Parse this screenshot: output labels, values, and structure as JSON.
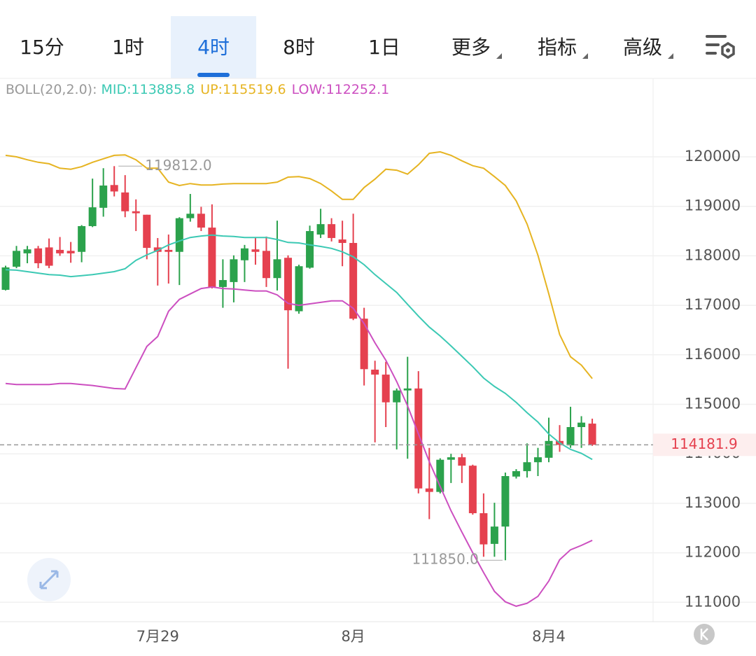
{
  "tabs": [
    {
      "label": "15分"
    },
    {
      "label": "1时"
    },
    {
      "label": "4时",
      "active": true
    },
    {
      "label": "8时"
    },
    {
      "label": "1日"
    },
    {
      "label": "更多",
      "dropdown": true
    },
    {
      "label": "指标",
      "dropdown": true
    },
    {
      "label": "高级",
      "dropdown": true
    }
  ],
  "chart_data": {
    "type": "candlestick",
    "indicator_label": "BOLL(20,2.0):",
    "categories": [
      null,
      null,
      null,
      null,
      null,
      null,
      null,
      null,
      null,
      null,
      null,
      null,
      null,
      null,
      "7月29",
      null,
      null,
      null,
      null,
      null,
      null,
      null,
      null,
      null,
      null,
      null,
      null,
      null,
      null,
      null,
      null,
      null,
      "8月",
      null,
      null,
      null,
      null,
      null,
      null,
      null,
      null,
      null,
      null,
      null,
      null,
      null,
      null,
      null,
      null,
      null,
      "8月4",
      null,
      null,
      null,
      null
    ],
    "open": [
      117313,
      117780,
      118050,
      118150,
      118170,
      118120,
      118100,
      118080,
      118600,
      118970,
      119430,
      119280,
      118900,
      118830,
      118170,
      118120,
      118080,
      118760,
      118850,
      118570,
      117370,
      117470,
      117910,
      118130,
      118100,
      117550,
      117960,
      116880,
      117760,
      118430,
      118640,
      118330,
      118260,
      116730,
      115700,
      115600,
      115040,
      115280,
      115320,
      113300,
      113230,
      113880,
      113930,
      113760,
      112800,
      112180,
      112530,
      113540,
      113650,
      113830,
      113920,
      114260,
      114170,
      114540,
      114610
    ],
    "high": [
      117800,
      118200,
      118200,
      118200,
      118350,
      118380,
      118280,
      118620,
      119560,
      119770,
      119812,
      119630,
      119140,
      118830,
      118360,
      118430,
      118780,
      119250,
      118990,
      119040,
      117930,
      118010,
      118220,
      118360,
      118390,
      118710,
      118010,
      117820,
      118610,
      118950,
      118760,
      118710,
      118850,
      116950,
      115880,
      115860,
      115320,
      115960,
      115670,
      114120,
      113910,
      114000,
      114000,
      113780,
      113200,
      113010,
      113620,
      113690,
      114210,
      114120,
      114730,
      114580,
      114950,
      114760,
      114710
    ],
    "low": [
      117300,
      117750,
      117850,
      117750,
      117750,
      118000,
      117860,
      117870,
      118580,
      118790,
      119200,
      118780,
      118500,
      117930,
      117400,
      117440,
      117410,
      118690,
      118500,
      117340,
      116950,
      117060,
      117470,
      117820,
      117370,
      117300,
      115720,
      116830,
      117740,
      118360,
      118290,
      117790,
      116700,
      115380,
      114230,
      114540,
      114090,
      113900,
      113200,
      112680,
      113200,
      113410,
      113410,
      112770,
      111920,
      111920,
      111850,
      113500,
      113520,
      113550,
      113830,
      114040,
      114120,
      114120,
      114160
    ],
    "close": [
      117766,
      118100,
      118130,
      117850,
      117800,
      118050,
      118050,
      118600,
      118980,
      119420,
      119300,
      118900,
      118860,
      118160,
      118080,
      118080,
      118760,
      118850,
      118570,
      117370,
      117510,
      117930,
      118150,
      118080,
      117550,
      117930,
      116900,
      117790,
      118500,
      118640,
      118360,
      118260,
      116730,
      115710,
      115600,
      115040,
      115280,
      115320,
      113300,
      113230,
      113880,
      113930,
      113760,
      112800,
      112170,
      112530,
      113550,
      113650,
      113830,
      113930,
      114260,
      114180,
      114540,
      114630,
      114181.9
    ],
    "up_color": "#2ba24c",
    "down_color": "#e5414f",
    "series": [
      {
        "name": "MID:113885.8",
        "color": "#3cc9b4",
        "values": [
          117720,
          117710,
          117680,
          117650,
          117620,
          117610,
          117580,
          117600,
          117620,
          117650,
          117680,
          117740,
          117910,
          118020,
          118110,
          118220,
          118300,
          118370,
          118400,
          118420,
          118400,
          118390,
          118370,
          118370,
          118370,
          118330,
          118270,
          118260,
          118220,
          118190,
          118150,
          118080,
          117980,
          117820,
          117620,
          117440,
          117260,
          117020,
          116780,
          116560,
          116380,
          116180,
          115970,
          115760,
          115530,
          115360,
          115220,
          115040,
          114830,
          114640,
          114400,
          114220,
          114090,
          114010,
          113885.8
        ]
      },
      {
        "name": "UP:115519.6",
        "color": "#e6b422",
        "values": [
          120030,
          120000,
          119940,
          119890,
          119860,
          119770,
          119750,
          119800,
          119890,
          119960,
          120030,
          120040,
          119940,
          119770,
          119770,
          119490,
          119420,
          119460,
          119430,
          119430,
          119450,
          119460,
          119460,
          119460,
          119460,
          119490,
          119590,
          119600,
          119560,
          119460,
          119310,
          119140,
          119140,
          119380,
          119550,
          119750,
          119730,
          119650,
          119840,
          120070,
          120100,
          120030,
          119920,
          119820,
          119770,
          119600,
          119420,
          119110,
          118640,
          118010,
          117230,
          116410,
          115960,
          115790,
          115519.6
        ]
      },
      {
        "name": "LOW:112252.1",
        "color": "#cc4fc0",
        "values": [
          115420,
          115400,
          115400,
          115400,
          115400,
          115420,
          115420,
          115400,
          115380,
          115350,
          115320,
          115310,
          115740,
          116170,
          116370,
          116880,
          117120,
          117230,
          117340,
          117370,
          117340,
          117330,
          117310,
          117290,
          117290,
          117210,
          117040,
          117000,
          117030,
          117060,
          117090,
          117090,
          116940,
          116630,
          116240,
          115890,
          115460,
          114970,
          114400,
          113840,
          113340,
          112850,
          112420,
          112000,
          111600,
          111220,
          111010,
          110920,
          110980,
          111120,
          111430,
          111860,
          112060,
          112150,
          112252.1
        ]
      }
    ],
    "annotations": [
      {
        "text": "119812.0",
        "value": 119812
      },
      {
        "text": "111850.0",
        "value": 111850
      }
    ],
    "last_price": 114181.9,
    "ylim": [
      110608,
      121570
    ],
    "yticks": [
      111000,
      112000,
      113000,
      114000,
      115000,
      116000,
      117000,
      118000,
      119000,
      120000
    ],
    "grid": true
  }
}
